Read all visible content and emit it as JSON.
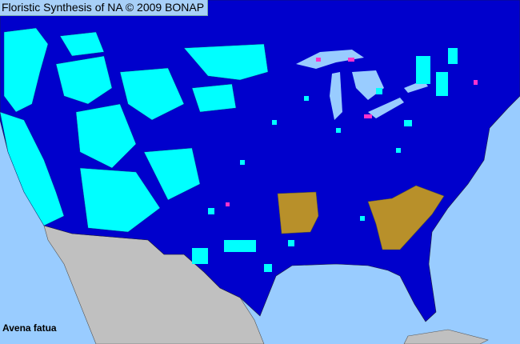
{
  "header": {
    "title": "Floristic Synthesis of NA © 2009 BONAP"
  },
  "species": {
    "name": "Avena fatua"
  },
  "colors": {
    "water": "#99ccff",
    "native_present": "#0000cc",
    "county_present": "#00ffff",
    "state_noxious": "#b8902a",
    "rare": "#ff33cc",
    "non_us": "#c0c0c0"
  }
}
